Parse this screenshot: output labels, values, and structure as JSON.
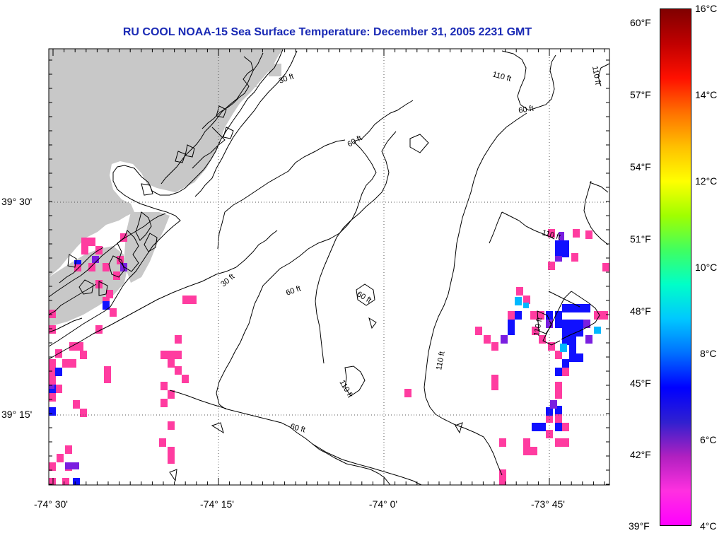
{
  "title": "RU COOL  NOAA-15  Sea Surface Temperature:  December 31, 2005 2231 GMT",
  "lat_labels": [
    "39° 30'",
    "39° 15'"
  ],
  "lon_labels": [
    "-74° 30'",
    "-74° 15'",
    "-74° 0'",
    "-73° 45'"
  ],
  "contour_labels": [
    "30 ft",
    "60 ft",
    "60 ft",
    "110 ft",
    "110 ft",
    "110 ft",
    "60 ft",
    "110 ft",
    "30 ft",
    "60 ft",
    "60 ft",
    "110 ft",
    "110 ft",
    "60 ft"
  ],
  "colorbar": {
    "fahrenheit_labels": [
      "60°F",
      "57°F",
      "54°F",
      "51°F",
      "48°F",
      "45°F",
      "42°F",
      "39°F"
    ],
    "celsius_labels": [
      "16°C",
      "14°C",
      "12°C",
      "10°C",
      "8°C",
      "6°C",
      "4°C"
    ],
    "colors": [
      "#ff00ff",
      "#ff30e0",
      "#b020c0",
      "#3020d0",
      "#0000ff",
      "#0070ff",
      "#00c8ff",
      "#00ffc8",
      "#40ff60",
      "#a0ff00",
      "#ffff00",
      "#ffc000",
      "#ff7000",
      "#ff1000",
      "#c00000",
      "#800000"
    ]
  },
  "colors": {
    "land": "#c8c8c8",
    "title": "#1a2ab5",
    "pink": "#ff3ca0",
    "blue": "#1010ff",
    "purple": "#7a1ee0"
  }
}
